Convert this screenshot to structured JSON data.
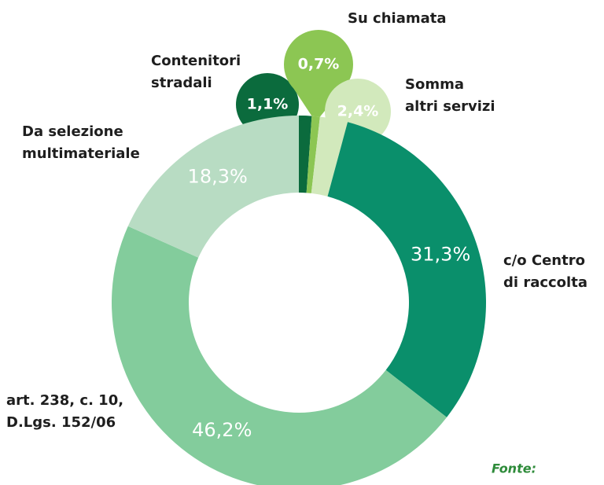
{
  "chart_data": {
    "type": "donut",
    "categories": [
      [
        "Contenitori",
        "stradali"
      ],
      [
        "Su chiamata"
      ],
      [
        "Somma",
        "altri servizi"
      ],
      [
        "c/o Centro",
        "di raccolta"
      ],
      [
        "art. 238, c. 10,",
        "D.Lgs. 152/06"
      ],
      [
        "Da selezione",
        "multimateriale"
      ]
    ],
    "values": [
      1.1,
      0.7,
      2.4,
      31.3,
      46.2,
      18.3
    ],
    "value_labels": [
      "1,1%",
      "0,7%",
      "2,4%",
      "31,3%",
      "46,2%",
      "18,3%"
    ],
    "colors": [
      "#0b6b3d",
      "#8cc653",
      "#d2e9bc",
      "#0a8f6b",
      "#83cc9c",
      "#b8dcc3"
    ],
    "annotation": "Fonte:"
  }
}
